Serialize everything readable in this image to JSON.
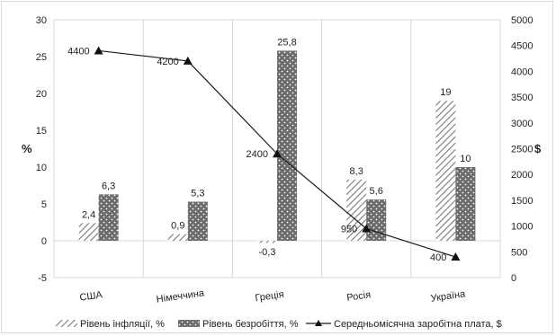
{
  "chart_data": {
    "type": "bar",
    "categories": [
      "США",
      "Німеччина",
      "Греція",
      "Росія",
      "Україна"
    ],
    "series": [
      {
        "name": "Рівень інфляції, %",
        "kind": "bar",
        "axis": "left",
        "pattern": "diagonal-hatch",
        "values": [
          2.4,
          0.9,
          -0.3,
          8.3,
          19
        ],
        "labels": [
          "2,4",
          "0,9",
          "-0,3",
          "8,3",
          "19"
        ]
      },
      {
        "name": "Рівень безробіття, %",
        "kind": "bar",
        "axis": "left",
        "pattern": "dotted-dark",
        "values": [
          6.3,
          5.3,
          25.8,
          5.6,
          10
        ],
        "labels": [
          "6,3",
          "5,3",
          "25,8",
          "5,6",
          "10"
        ]
      },
      {
        "name": "Середньомісячна заробітна плата, $",
        "kind": "line",
        "axis": "right",
        "marker": "triangle",
        "values": [
          4400,
          4200,
          2400,
          950,
          400
        ],
        "labels": [
          "4400",
          "4200",
          "2400",
          "950",
          "400"
        ]
      }
    ],
    "y_left": {
      "label": "%",
      "ylim": [
        -5,
        30
      ],
      "ticks": [
        "-5",
        "0",
        "5",
        "10",
        "15",
        "20",
        "25",
        "30"
      ]
    },
    "y_right": {
      "label": "$",
      "ylim": [
        0,
        5000
      ],
      "ticks": [
        "0",
        "500",
        "1000",
        "1500",
        "2000",
        "2500",
        "3000",
        "3500",
        "4000",
        "4500",
        "5000"
      ]
    },
    "grid": "vertical-category-lines",
    "legend": "bottom",
    "colors": {
      "bar_dark": "#6b6b6b",
      "hatch": "#7a7a7a",
      "line": "#1a1a1a",
      "grid": "#d9d9d9"
    }
  }
}
